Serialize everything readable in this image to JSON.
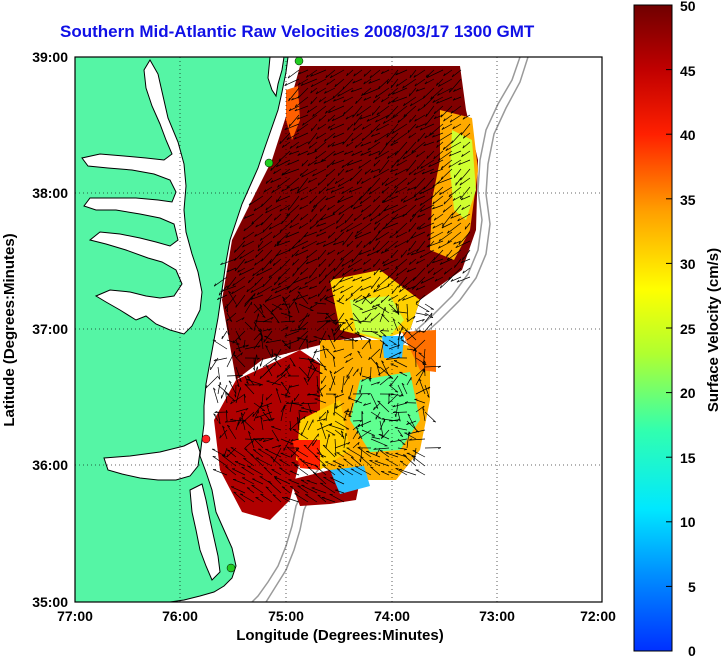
{
  "title": "Southern Mid-Atlantic Raw Velocities 2008/03/17 1300 GMT",
  "x_axis": {
    "label": "Longitude (Degrees:Minutes)",
    "ticks": [
      "77:00",
      "76:00",
      "75:00",
      "74:00",
      "73:00",
      "72:00"
    ]
  },
  "y_axis": {
    "label": "Latitude (Degrees:Minutes)",
    "ticks": [
      "39:00",
      "38:00",
      "37:00",
      "36:00",
      "35:00"
    ]
  },
  "colorbar": {
    "label": "Surface Velocity (cm/s)",
    "ticks": [
      "50",
      "45",
      "40",
      "35",
      "30",
      "25",
      "20",
      "15",
      "10",
      "5",
      "0"
    ]
  },
  "colors": {
    "land": "#55f5a5",
    "coast": "#000000",
    "bathymetry": "#9a9a9a",
    "station_green": "#22cc22",
    "station_red": "#ff2222"
  },
  "map_data": {
    "lon_range": [
      -77,
      -72
    ],
    "lat_range": [
      35,
      39
    ],
    "velocity_range_cm_s": [
      0,
      50
    ],
    "grid": "dotted",
    "stations": [
      {
        "lon": -74.92,
        "lat": 39.0,
        "color": "green"
      },
      {
        "lon": -75.1,
        "lat": 38.22,
        "color": "green"
      },
      {
        "lon": -75.75,
        "lat": 36.18,
        "color": "red"
      },
      {
        "lon": -75.52,
        "lat": 35.25,
        "color": "green"
      }
    ]
  }
}
